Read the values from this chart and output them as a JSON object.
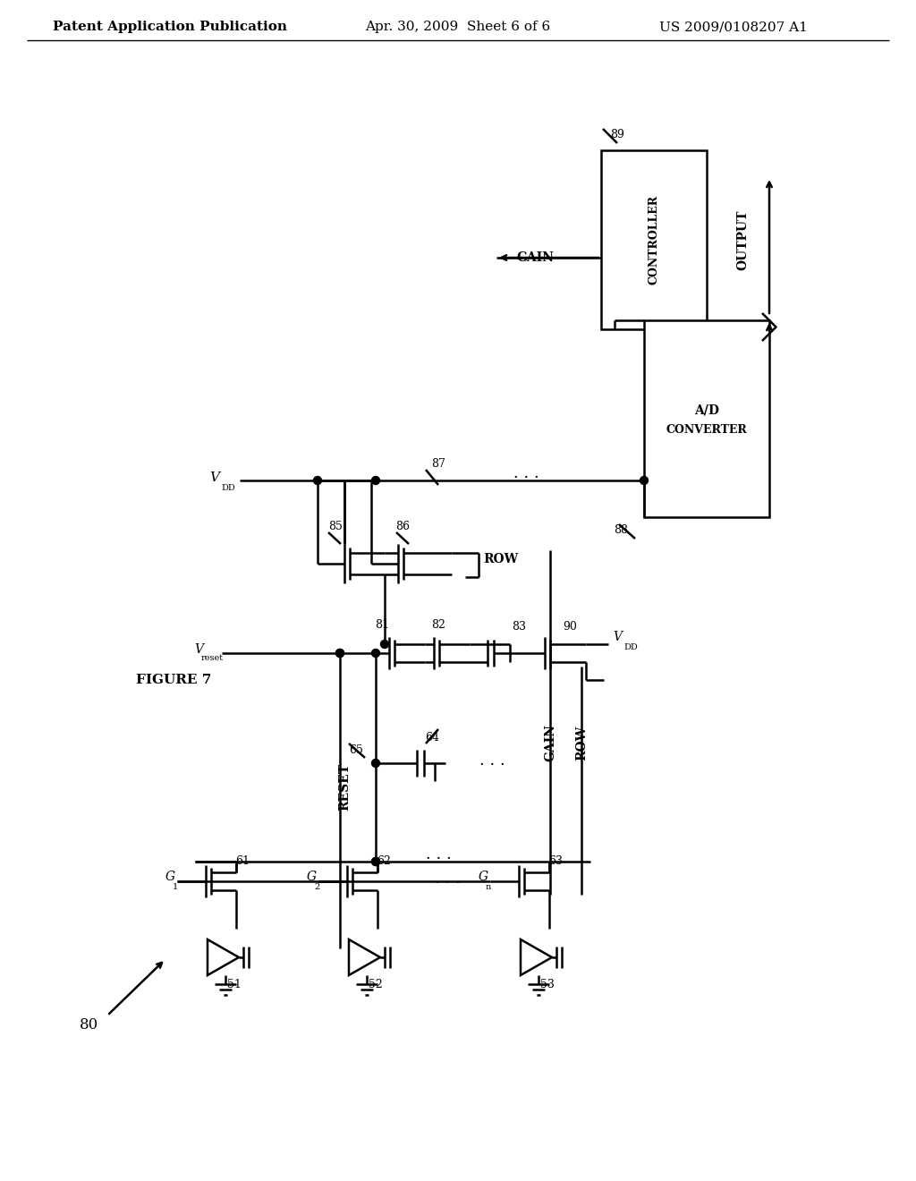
{
  "title_left": "Patent Application Publication",
  "title_mid": "Apr. 30, 2009  Sheet 6 of 6",
  "title_right": "US 2009/0108207 A1",
  "bg_color": "#ffffff",
  "line_color": "#000000",
  "text_color": "#000000"
}
